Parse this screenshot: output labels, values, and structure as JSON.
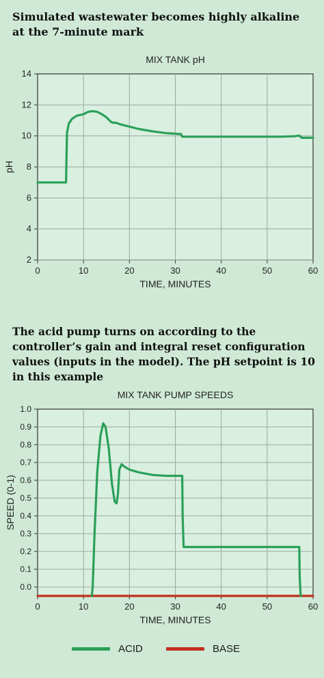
{
  "headings": {
    "top": "Simulated wastewater becomes highly alkaline at the 7-minute mark",
    "middle": "The acid pump turns on according to the controller’s gain and integral reset configuration values (inputs in the model). The pH setpoint is 10 in this example"
  },
  "colors": {
    "background": "#cfe9d6",
    "plot_area": "#d9efe0",
    "grid": "#9aa8a0",
    "ph_line": "#2aa05a",
    "acid": "#2aa05a",
    "base": "#c0301f"
  },
  "chart_data": [
    {
      "type": "line",
      "title": "MIX TANK pH",
      "xlabel": "TIME, MINUTES",
      "ylabel": "pH",
      "xlim": [
        0,
        60
      ],
      "ylim": [
        2,
        14
      ],
      "xticks": [
        0,
        10,
        20,
        30,
        40,
        50,
        60
      ],
      "yticks": [
        2,
        4,
        6,
        8,
        10,
        12,
        14
      ],
      "grid": true,
      "series": [
        {
          "name": "",
          "x": [
            0,
            6.2,
            6.4,
            6.8,
            7.5,
            8.5,
            10,
            11,
            12,
            13,
            14,
            15,
            16,
            16.5,
            17,
            18,
            20,
            22,
            25,
            28,
            31,
            31.2,
            31.5,
            35,
            40,
            45,
            50,
            53,
            56,
            57,
            57.5,
            60
          ],
          "y": [
            7,
            7,
            10.2,
            10.8,
            11.1,
            11.3,
            11.4,
            11.55,
            11.6,
            11.55,
            11.4,
            11.2,
            10.9,
            10.85,
            10.85,
            10.75,
            10.6,
            10.45,
            10.3,
            10.18,
            10.12,
            10.12,
            9.95,
            9.95,
            9.95,
            9.95,
            9.95,
            9.95,
            9.98,
            10.02,
            9.88,
            9.88
          ]
        }
      ]
    },
    {
      "type": "line",
      "title": "MIX TANK PUMP SPEEDS",
      "xlabel": "TIME, MINUTES",
      "ylabel": "SPEED (0-1)",
      "xlim": [
        0,
        60
      ],
      "ylim": [
        -0.05,
        1.0
      ],
      "xticks": [
        0,
        10,
        20,
        30,
        40,
        50,
        60
      ],
      "yticks": [
        0.0,
        0.1,
        0.2,
        0.3,
        0.4,
        0.5,
        0.6,
        0.7,
        0.8,
        0.9,
        1.0
      ],
      "ytick_labels": [
        "0.0",
        "0.1",
        "0.2",
        "0.3",
        "0.4",
        "0.5",
        "0.6",
        "0.7",
        "0.8",
        "0.9",
        "1.0"
      ],
      "grid": true,
      "legend": "bottom",
      "series": [
        {
          "name": "ACID",
          "x": [
            11.8,
            12.0,
            12.4,
            13.0,
            13.7,
            14.3,
            14.8,
            15.5,
            16.2,
            16.8,
            17.2,
            17.5,
            17.8,
            18.3,
            19,
            20,
            22,
            25,
            28,
            31.5,
            31.6,
            31.8,
            40,
            50,
            57,
            57.1,
            57.3
          ],
          "y": [
            -0.05,
            0.0,
            0.3,
            0.65,
            0.85,
            0.92,
            0.9,
            0.78,
            0.58,
            0.48,
            0.47,
            0.52,
            0.66,
            0.69,
            0.675,
            0.66,
            0.645,
            0.63,
            0.625,
            0.625,
            0.4,
            0.225,
            0.225,
            0.225,
            0.225,
            0.05,
            -0.05
          ]
        },
        {
          "name": "BASE",
          "x": [
            0,
            60
          ],
          "y": [
            -0.05,
            -0.05
          ]
        }
      ]
    }
  ],
  "legend": {
    "acid_label": "ACID",
    "base_label": "BASE"
  }
}
